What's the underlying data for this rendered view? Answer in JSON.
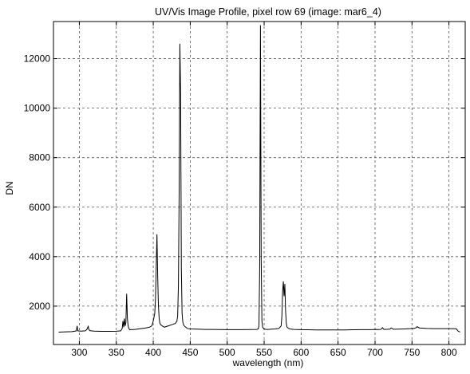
{
  "chart_data": {
    "type": "line",
    "title": "UV/Vis Image Profile, pixel row 69  (image: mar6_4)",
    "xlabel": "wavelength (nm)",
    "ylabel": "DN",
    "xlim": [
      265,
      822
    ],
    "ylim": [
      450,
      13500
    ],
    "xticks": [
      300,
      350,
      400,
      450,
      500,
      550,
      600,
      650,
      700,
      750,
      800
    ],
    "yticks": [
      2000,
      4000,
      6000,
      8000,
      10000,
      12000
    ],
    "grid": true,
    "legend": "none",
    "colors": {
      "line": "#000000",
      "grid": "#555555",
      "frame": "#000000",
      "background": "#ffffff"
    },
    "series": [
      {
        "x": [
          272,
          282,
          290,
          294,
          296,
          297,
          298,
          302,
          308,
          310,
          312,
          313,
          314,
          320,
          330,
          340,
          350,
          356,
          358,
          359,
          360,
          361,
          362,
          363,
          364,
          365,
          366,
          367,
          368,
          370,
          375,
          380,
          385,
          390,
          395,
          398,
          400,
          402,
          403,
          404,
          405,
          406,
          407,
          408,
          409,
          410,
          412,
          415,
          420,
          425,
          430,
          432,
          433,
          434,
          435,
          436,
          437,
          438,
          439,
          440,
          441,
          442,
          444,
          446,
          450,
          460,
          470,
          480,
          490,
          500,
          510,
          520,
          530,
          540,
          542,
          543,
          544,
          545,
          546,
          547,
          548,
          549,
          550,
          551,
          553,
          555,
          560,
          565,
          570,
          573,
          574,
          575,
          576,
          577,
          578,
          579,
          580,
          581,
          583,
          585,
          590,
          600,
          610,
          620,
          630,
          640,
          650,
          660,
          670,
          680,
          690,
          695,
          700,
          705,
          708,
          710,
          712,
          720,
          722,
          725,
          730,
          740,
          745,
          748,
          750,
          752,
          755,
          757,
          760,
          770,
          780,
          790,
          800,
          810,
          812,
          815
        ],
        "y": [
          950,
          960,
          970,
          990,
          1000,
          1200,
          1000,
          990,
          1000,
          1050,
          1180,
          1050,
          1010,
          990,
          980,
          980,
          985,
          1000,
          1100,
          1400,
          1150,
          1500,
          1200,
          1350,
          2500,
          1500,
          1200,
          1100,
          1050,
          1050,
          1060,
          1080,
          1100,
          1120,
          1150,
          1200,
          1400,
          1700,
          2300,
          3600,
          4900,
          3200,
          2000,
          1500,
          1300,
          1250,
          1200,
          1150,
          1200,
          1250,
          1300,
          1400,
          1600,
          2800,
          6500,
          12600,
          10600,
          3500,
          1700,
          1350,
          1250,
          1200,
          1150,
          1100,
          1080,
          1070,
          1060,
          1060,
          1055,
          1050,
          1050,
          1050,
          1055,
          1060,
          1080,
          1200,
          3600,
          13350,
          3900,
          1400,
          1150,
          1100,
          1080,
          1070,
          1060,
          1060,
          1070,
          1080,
          1100,
          1200,
          1600,
          2600,
          3000,
          2400,
          2900,
          1800,
          1300,
          1150,
          1100,
          1080,
          1060,
          1050,
          1045,
          1040,
          1040,
          1040,
          1040,
          1040,
          1045,
          1050,
          1050,
          1050,
          1060,
          1055,
          1060,
          1130,
          1060,
          1070,
          1120,
          1065,
          1070,
          1080,
          1085,
          1090,
          1110,
          1090,
          1120,
          1170,
          1120,
          1100,
          1090,
          1090,
          1090,
          1085,
          1000,
          950
        ]
      }
    ]
  }
}
